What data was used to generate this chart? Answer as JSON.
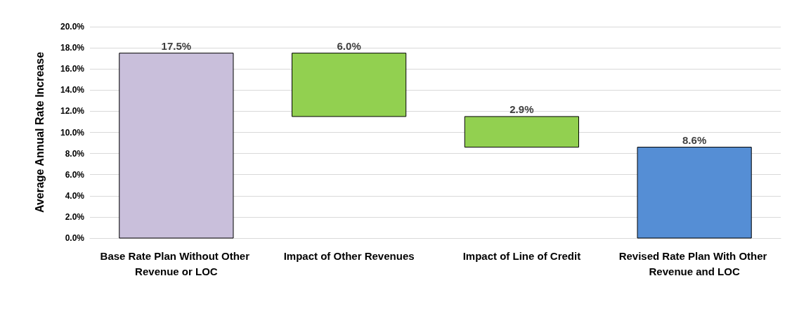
{
  "chart_data": {
    "type": "bar",
    "ylabel": "Average Annual Rate Increase",
    "categories": [
      "Base Rate Plan Without Other Revenue or LOC",
      "Impact of Other Revenues",
      "Impact of Line of Credit",
      "Revised Rate Plan With Other Revenue and LOC"
    ],
    "values": [
      17.5,
      6.0,
      2.9,
      8.6
    ],
    "base": [
      0,
      11.5,
      8.6,
      0
    ],
    "colors": [
      "#c9bfdb",
      "#92d050",
      "#92d050",
      "#558ed5"
    ],
    "value_labels": [
      "17.5%",
      "6.0%",
      "2.9%",
      "8.6%"
    ],
    "ylim": [
      0,
      20
    ],
    "yticks": [
      {
        "value": 0,
        "label": "0.0%"
      },
      {
        "value": 2,
        "label": "2.0%"
      },
      {
        "value": 4,
        "label": "4.0%"
      },
      {
        "value": 6,
        "label": "6.0%"
      },
      {
        "value": 8,
        "label": "8.0%"
      },
      {
        "value": 10,
        "label": "10.0%"
      },
      {
        "value": 12,
        "label": "12.0%"
      },
      {
        "value": 14,
        "label": "14.0%"
      },
      {
        "value": 16,
        "label": "16.0%"
      },
      {
        "value": 18,
        "label": "18.0%"
      },
      {
        "value": 20,
        "label": "20.0%"
      }
    ],
    "grid": "y"
  }
}
